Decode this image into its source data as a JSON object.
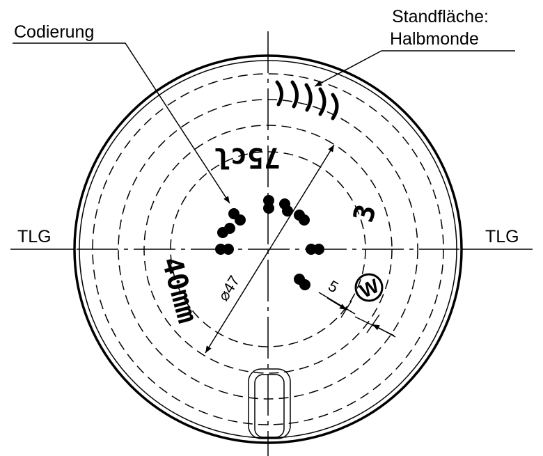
{
  "labels": {
    "codierung": "Codierung",
    "standflaeche": "Standfläche:",
    "halbmonde": "Halbmonde",
    "tlg_left": "TLG",
    "tlg_right": "TLG"
  },
  "embossing": {
    "volume": "75cl",
    "height": "40mm",
    "mould": "3",
    "maker": "W"
  },
  "dimensions": {
    "diameter": "⌀47",
    "offset": "5"
  }
}
